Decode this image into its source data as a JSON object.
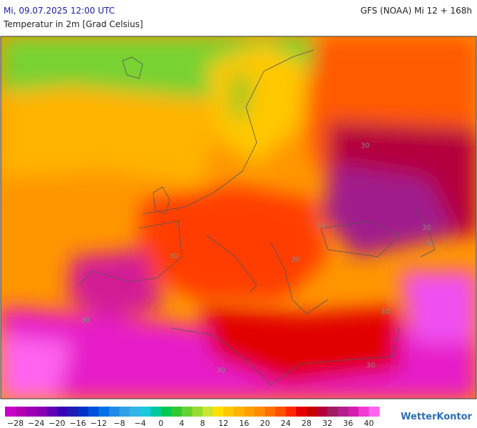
{
  "header": {
    "title": "Mi, 09.07.2025 12:00 UTC",
    "model": "GFS (NOAA) Mi 12 + 168h",
    "subtitle": "Temperatur in 2m [Grad Celsius]"
  },
  "map": {
    "contour_labels": [
      "30",
      "30",
      "30",
      "30",
      "30",
      "30",
      "30",
      "30",
      "30",
      "30"
    ]
  },
  "legend": {
    "labels": [
      "−28",
      "−24",
      "−20",
      "−16",
      "−12",
      "−8",
      "−4",
      "0",
      "4",
      "8",
      "12",
      "16",
      "20",
      "24",
      "28",
      "32",
      "36",
      "40"
    ]
  },
  "brand": "WetterKontor"
}
